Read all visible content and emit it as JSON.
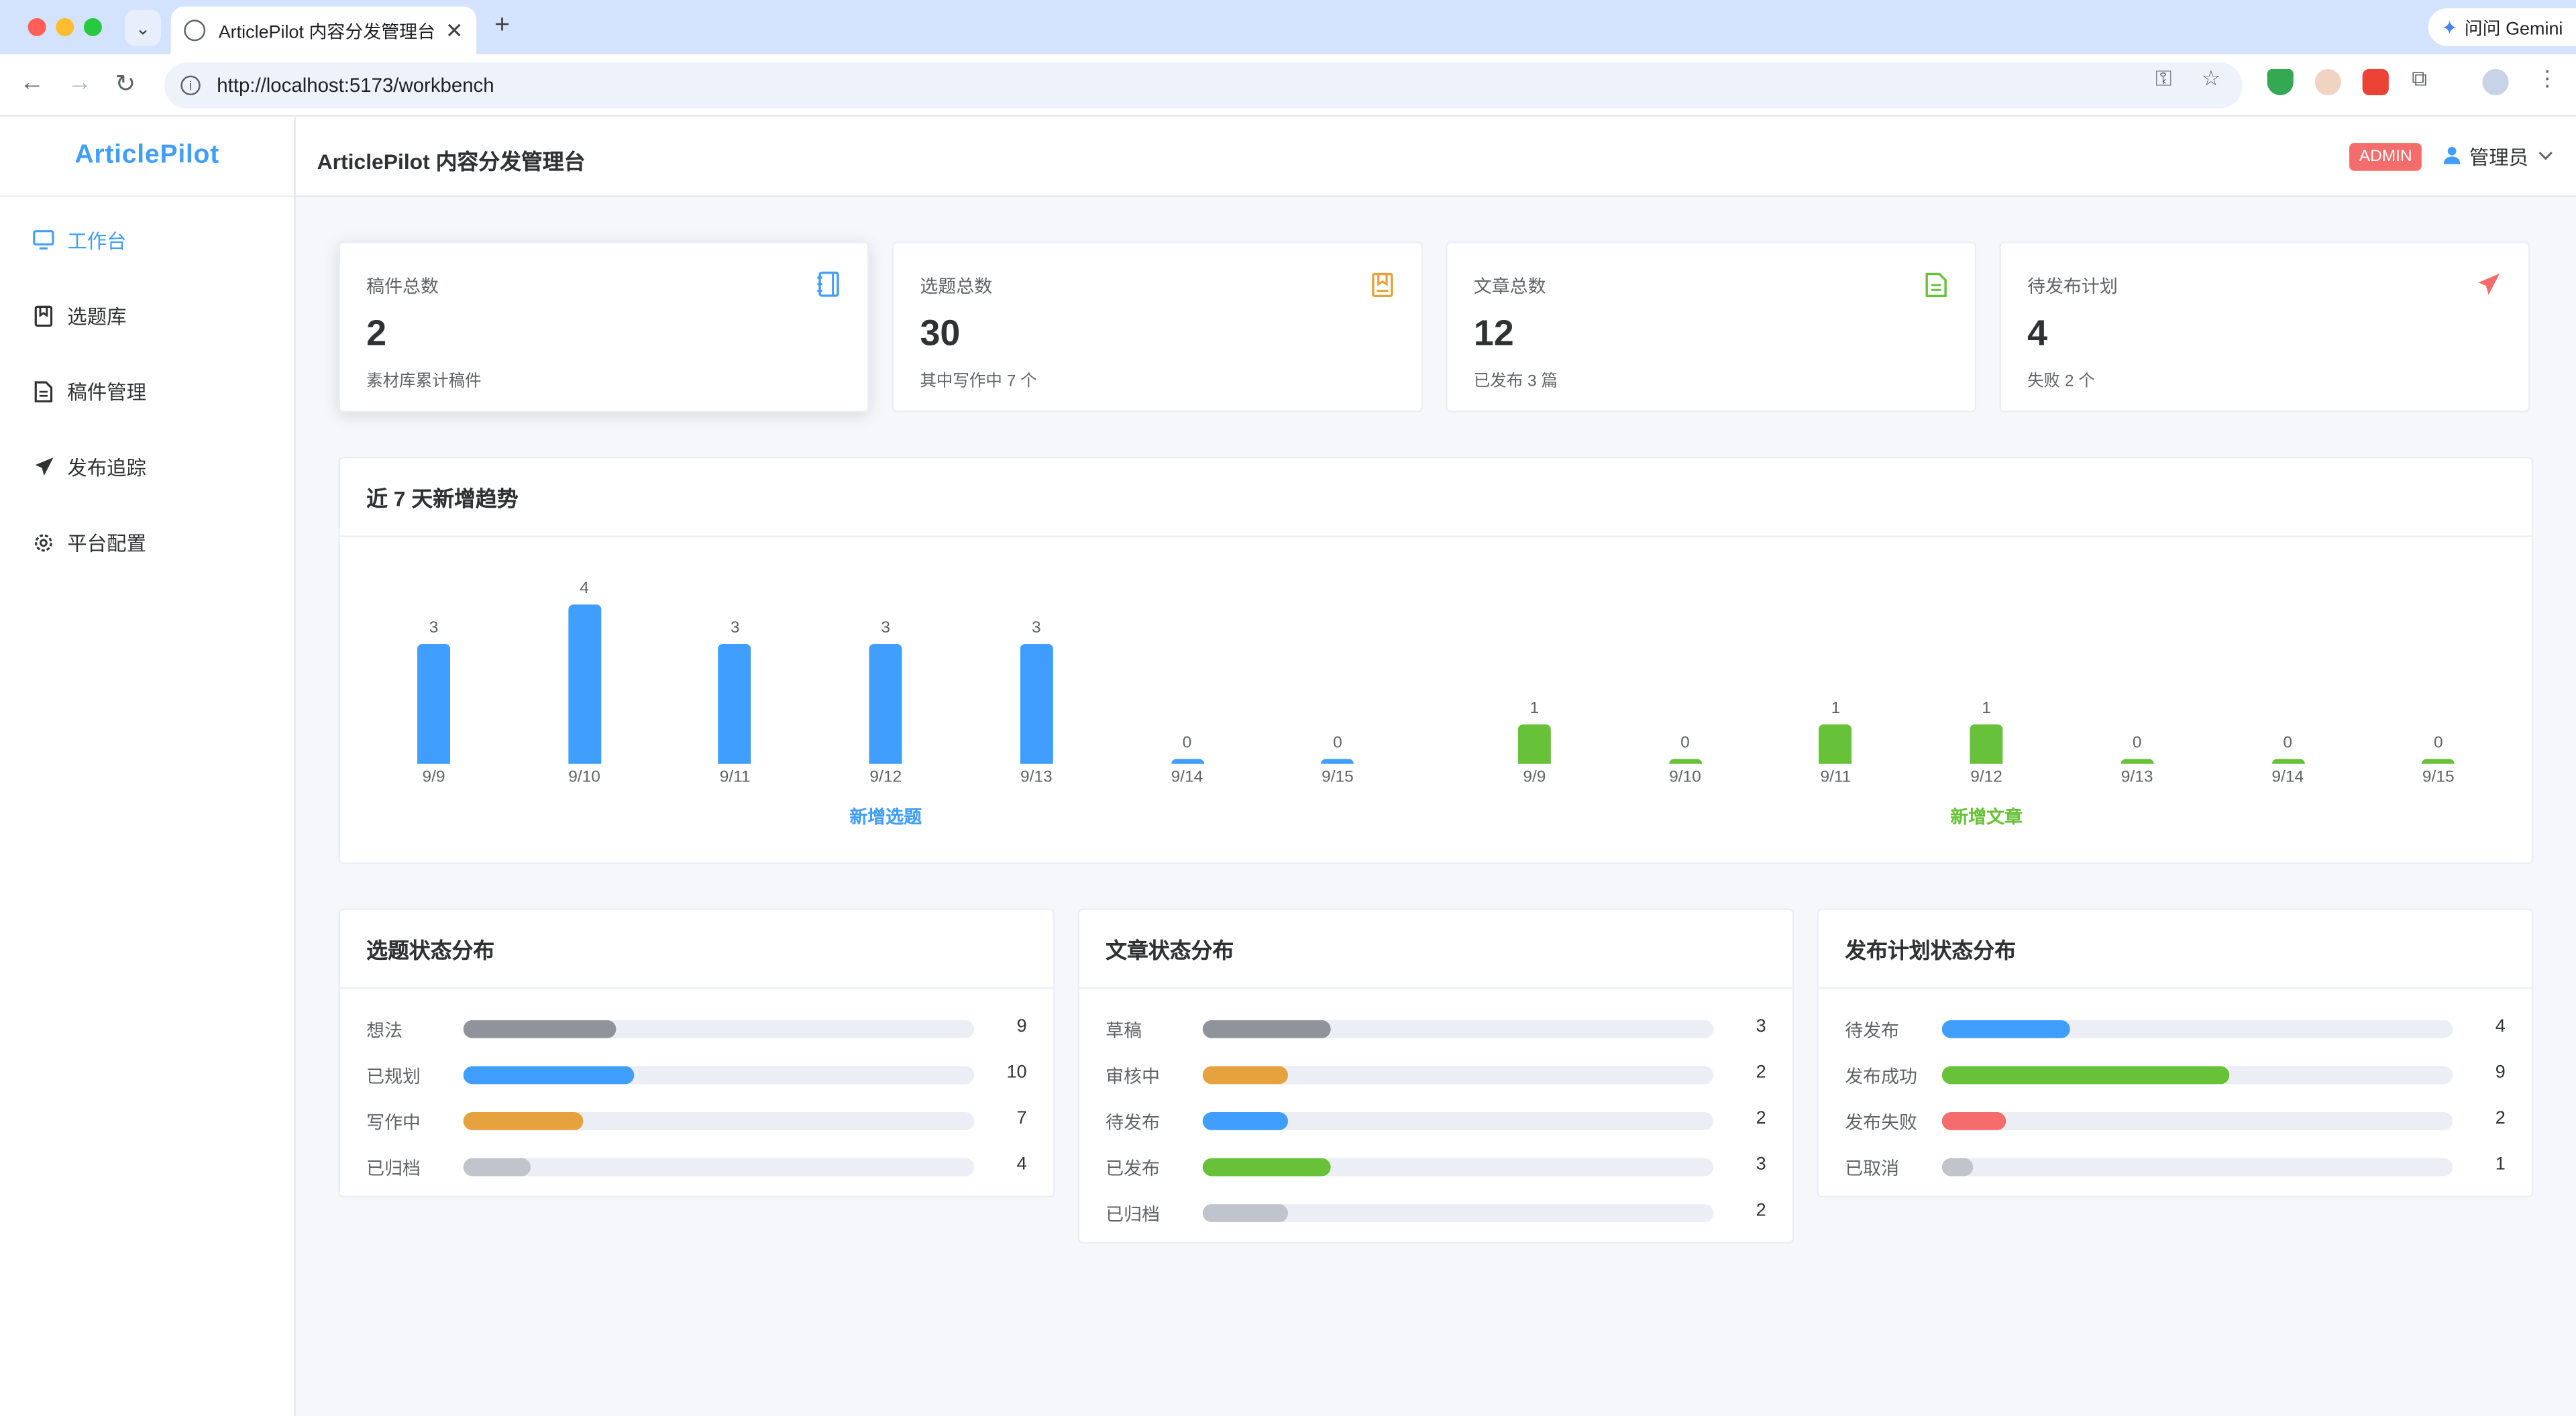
{
  "browser": {
    "tab_title": "ArticlePilot 内容分发管理台",
    "tab_menu_icon": "chevron-down-icon",
    "gemini_label": "问问 Gemini",
    "url": "http://localhost:5173/workbench"
  },
  "app": {
    "logo": "ArticlePilot",
    "page_title": "ArticlePilot 内容分发管理台",
    "role_badge": "ADMIN",
    "user_name": "管理员"
  },
  "sidebar": {
    "items": [
      {
        "label": "工作台",
        "icon": "monitor-icon",
        "active": true
      },
      {
        "label": "选题库",
        "icon": "bookmark-icon",
        "active": false
      },
      {
        "label": "稿件管理",
        "icon": "document-icon",
        "active": false
      },
      {
        "label": "发布追踪",
        "icon": "send-icon",
        "active": false
      },
      {
        "label": "平台配置",
        "icon": "gear-icon",
        "active": false
      }
    ]
  },
  "stats": [
    {
      "label": "稿件总数",
      "value": "2",
      "sub": "素材库累计稿件",
      "icon": "notebook-icon",
      "color": "#409eff"
    },
    {
      "label": "选题总数",
      "value": "30",
      "sub": "其中写作中 7 个",
      "icon": "bookmark-icon",
      "color": "#e6a23c"
    },
    {
      "label": "文章总数",
      "value": "12",
      "sub": "已发布 3 篇",
      "icon": "document-icon",
      "color": "#67c23a"
    },
    {
      "label": "待发布计划",
      "value": "4",
      "sub": "失败 2 个",
      "icon": "send-icon",
      "color": "#f56c6c"
    }
  ],
  "trend": {
    "title": "近 7 天新增趋势"
  },
  "chart_data": [
    {
      "type": "bar",
      "categories": [
        "9/9",
        "9/10",
        "9/11",
        "9/12",
        "9/13",
        "9/14",
        "9/15"
      ],
      "values": [
        3,
        4,
        3,
        3,
        3,
        0,
        0
      ],
      "xlabel": "新增选题",
      "color": "#409eff"
    },
    {
      "type": "bar",
      "categories": [
        "9/9",
        "9/10",
        "9/11",
        "9/12",
        "9/13",
        "9/14",
        "9/15"
      ],
      "values": [
        1,
        0,
        1,
        1,
        0,
        0,
        0
      ],
      "xlabel": "新增文章",
      "color": "#67c23a"
    }
  ],
  "distributions": [
    {
      "title": "选题状态分布",
      "max": 30,
      "rows": [
        {
          "label": "想法",
          "count": 9,
          "color": "#909399"
        },
        {
          "label": "已规划",
          "count": 10,
          "color": "#409eff"
        },
        {
          "label": "写作中",
          "count": 7,
          "color": "#e6a23c"
        },
        {
          "label": "已归档",
          "count": 4,
          "color": "#c0c4cc"
        }
      ]
    },
    {
      "title": "文章状态分布",
      "max": 12,
      "rows": [
        {
          "label": "草稿",
          "count": 3,
          "color": "#909399"
        },
        {
          "label": "审核中",
          "count": 2,
          "color": "#e6a23c"
        },
        {
          "label": "待发布",
          "count": 2,
          "color": "#409eff"
        },
        {
          "label": "已发布",
          "count": 3,
          "color": "#67c23a"
        },
        {
          "label": "已归档",
          "count": 2,
          "color": "#c0c4cc"
        }
      ]
    },
    {
      "title": "发布计划状态分布",
      "max": 16,
      "rows": [
        {
          "label": "待发布",
          "count": 4,
          "color": "#409eff"
        },
        {
          "label": "发布成功",
          "count": 9,
          "color": "#67c23a"
        },
        {
          "label": "发布失败",
          "count": 2,
          "color": "#f56c6c"
        },
        {
          "label": "已取消",
          "count": 1,
          "color": "#c0c4cc"
        }
      ]
    }
  ]
}
